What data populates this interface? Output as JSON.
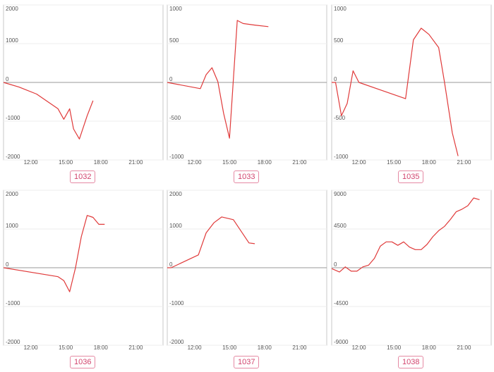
{
  "charts": [
    {
      "label": "1032"
    },
    {
      "label": "1033"
    },
    {
      "label": "1035"
    },
    {
      "label": "1036"
    },
    {
      "label": "1037"
    },
    {
      "label": "1038"
    }
  ],
  "chart_data": [
    {
      "type": "line",
      "name": "1032",
      "xlim": [
        "09:40",
        "23:20"
      ],
      "ylim": [
        -2000,
        2000
      ],
      "yticks": [
        2000,
        1000,
        0,
        -1000,
        -2000
      ],
      "xticks": [
        "12:00",
        "15:00",
        "18:00",
        "21:00"
      ],
      "color": "#e03a3a",
      "x": [
        "09:40",
        "11:00",
        "12:30",
        "14:20",
        "14:50",
        "15:20",
        "15:40",
        "16:10",
        "16:50",
        "17:20"
      ],
      "y": [
        0,
        -120,
        -300,
        -680,
        -950,
        -680,
        -1200,
        -1460,
        -860,
        -470
      ]
    },
    {
      "type": "line",
      "name": "1033",
      "xlim": [
        "09:40",
        "23:20"
      ],
      "ylim": [
        -1000,
        1000
      ],
      "yticks": [
        1000,
        500,
        0,
        -500,
        -1000
      ],
      "xticks": [
        "12:00",
        "15:00",
        "18:00",
        "21:00"
      ],
      "color": "#e03a3a",
      "x": [
        "09:40",
        "12:30",
        "13:00",
        "13:30",
        "14:00",
        "14:30",
        "15:00",
        "15:40",
        "16:10",
        "17:10",
        "18:20"
      ],
      "y": [
        0,
        -80,
        100,
        190,
        10,
        -400,
        -720,
        800,
        760,
        740,
        720
      ]
    },
    {
      "type": "line",
      "name": "1035",
      "xlim": [
        "09:40",
        "23:20"
      ],
      "ylim": [
        -1000,
        1000
      ],
      "yticks": [
        1000,
        500,
        0,
        -500,
        -1000
      ],
      "xticks": [
        "12:00",
        "15:00",
        "18:00",
        "21:00"
      ],
      "color": "#e03a3a",
      "x": [
        "09:40",
        "10:00",
        "10:30",
        "11:00",
        "11:30",
        "12:00",
        "16:00",
        "16:40",
        "17:20",
        "18:00",
        "18:50",
        "19:20",
        "20:00",
        "20:30"
      ],
      "y": [
        0,
        0,
        -430,
        -270,
        150,
        0,
        -210,
        550,
        700,
        620,
        450,
        0,
        -650,
        -950
      ]
    },
    {
      "type": "line",
      "name": "1036",
      "xlim": [
        "09:40",
        "23:20"
      ],
      "ylim": [
        -2000,
        2000
      ],
      "yticks": [
        2000,
        1000,
        0,
        -1000,
        -2000
      ],
      "xticks": [
        "12:00",
        "15:00",
        "18:00",
        "21:00"
      ],
      "color": "#e03a3a",
      "x": [
        "09:40",
        "14:20",
        "14:50",
        "15:20",
        "15:50",
        "16:20",
        "16:50",
        "17:20",
        "17:50",
        "18:20"
      ],
      "y": [
        0,
        -230,
        -330,
        -620,
        0,
        800,
        1350,
        1300,
        1120,
        1120
      ]
    },
    {
      "type": "line",
      "name": "1037",
      "xlim": [
        "09:40",
        "23:20"
      ],
      "ylim": [
        -2000,
        2000
      ],
      "yticks": [
        2000,
        1000,
        0,
        -1000,
        -2000
      ],
      "xticks": [
        "12:00",
        "15:00",
        "18:00",
        "21:00"
      ],
      "color": "#e03a3a",
      "x": [
        "09:40",
        "10:00",
        "12:20",
        "13:00",
        "13:40",
        "14:20",
        "15:20",
        "16:40",
        "17:10"
      ],
      "y": [
        0,
        0,
        330,
        900,
        1160,
        1310,
        1240,
        640,
        620
      ]
    },
    {
      "type": "line",
      "name": "1038",
      "xlim": [
        "09:40",
        "23:20"
      ],
      "ylim": [
        -9000,
        9000
      ],
      "yticks": [
        9000,
        4500,
        0,
        -4500,
        -9000
      ],
      "xticks": [
        "12:00",
        "15:00",
        "18:00",
        "21:00"
      ],
      "color": "#e03a3a",
      "x": [
        "09:40",
        "10:20",
        "10:50",
        "11:20",
        "11:50",
        "12:20",
        "12:50",
        "13:20",
        "13:50",
        "14:20",
        "14:50",
        "15:20",
        "15:50",
        "16:20",
        "16:50",
        "17:20",
        "17:50",
        "18:20",
        "18:50",
        "19:20",
        "19:50",
        "20:20",
        "20:50",
        "21:20",
        "21:50",
        "22:20"
      ],
      "y": [
        -100,
        -500,
        100,
        -400,
        -400,
        100,
        300,
        1100,
        2500,
        3000,
        3000,
        2600,
        3000,
        2400,
        2100,
        2100,
        2700,
        3600,
        4300,
        4800,
        5600,
        6500,
        6800,
        7200,
        8100,
        7900
      ]
    }
  ]
}
